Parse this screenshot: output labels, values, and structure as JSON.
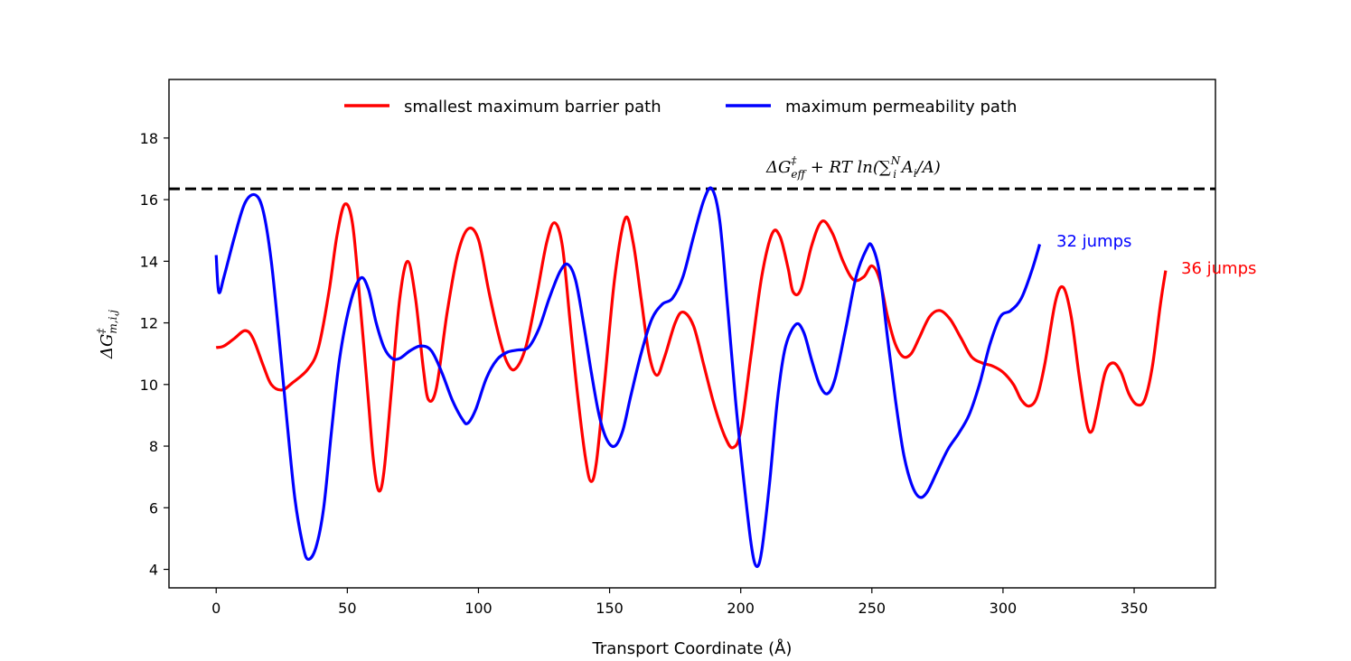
{
  "chart_data": {
    "type": "line",
    "title": "",
    "xlabel": "Transport Coordinate (Å)",
    "ylabel": "ΔG‡m,i,j",
    "xlim": [
      -18,
      381
    ],
    "ylim": [
      3.4,
      19.9
    ],
    "xticks": [
      0,
      50,
      100,
      150,
      200,
      250,
      300,
      350
    ],
    "yticks": [
      4,
      6,
      8,
      10,
      12,
      14,
      16,
      18
    ],
    "legend_position": "upper-center",
    "reference_line": {
      "y": 16.35,
      "style": "dashed",
      "label_parts": {
        "base": "ΔG",
        "sup": "‡",
        "sub": "eff",
        "rest": " + RT ln(∑",
        "sum_sub": "i",
        "sum_sup": "N",
        "tail": " A",
        "tail_sub": "i",
        "end": "/A)"
      }
    },
    "series": [
      {
        "name": "smallest maximum barrier path",
        "color": "#ff0000",
        "end_label": "36 jumps",
        "points": [
          [
            0,
            11.2
          ],
          [
            3,
            11.25
          ],
          [
            7,
            11.5
          ],
          [
            11,
            11.75
          ],
          [
            14,
            11.5
          ],
          [
            18,
            10.6
          ],
          [
            21,
            10.0
          ],
          [
            25,
            9.82
          ],
          [
            29,
            10.05
          ],
          [
            35,
            10.5
          ],
          [
            39,
            11.2
          ],
          [
            43,
            13.0
          ],
          [
            46,
            14.8
          ],
          [
            49,
            15.85
          ],
          [
            52,
            15.2
          ],
          [
            55,
            12.5
          ],
          [
            58,
            9.5
          ],
          [
            60,
            7.5
          ],
          [
            62,
            6.55
          ],
          [
            64,
            7.2
          ],
          [
            67,
            10.0
          ],
          [
            70,
            12.8
          ],
          [
            73,
            14.0
          ],
          [
            76,
            12.8
          ],
          [
            79,
            10.5
          ],
          [
            81,
            9.5
          ],
          [
            84,
            9.9
          ],
          [
            88,
            12.3
          ],
          [
            92,
            14.2
          ],
          [
            96,
            15.05
          ],
          [
            100,
            14.7
          ],
          [
            104,
            13.0
          ],
          [
            108,
            11.5
          ],
          [
            111,
            10.7
          ],
          [
            114,
            10.5
          ],
          [
            118,
            11.2
          ],
          [
            122,
            12.8
          ],
          [
            126,
            14.6
          ],
          [
            129,
            15.25
          ],
          [
            132,
            14.5
          ],
          [
            135,
            12.0
          ],
          [
            138,
            9.5
          ],
          [
            141,
            7.5
          ],
          [
            143,
            6.85
          ],
          [
            145,
            7.5
          ],
          [
            148,
            10.0
          ],
          [
            152,
            13.5
          ],
          [
            156,
            15.4
          ],
          [
            159,
            14.6
          ],
          [
            162,
            12.8
          ],
          [
            165,
            11.0
          ],
          [
            168,
            10.3
          ],
          [
            171,
            10.9
          ],
          [
            175,
            12.0
          ],
          [
            178,
            12.35
          ],
          [
            182,
            11.9
          ],
          [
            186,
            10.6
          ],
          [
            190,
            9.3
          ],
          [
            194,
            8.3
          ],
          [
            197,
            7.95
          ],
          [
            200,
            8.5
          ],
          [
            204,
            11.0
          ],
          [
            208,
            13.5
          ],
          [
            212,
            14.9
          ],
          [
            215,
            14.8
          ],
          [
            218,
            13.8
          ],
          [
            220,
            13.0
          ],
          [
            223,
            13.1
          ],
          [
            227,
            14.5
          ],
          [
            231,
            15.3
          ],
          [
            235,
            14.9
          ],
          [
            239,
            14.0
          ],
          [
            243,
            13.4
          ],
          [
            247,
            13.5
          ],
          [
            250,
            13.85
          ],
          [
            253,
            13.4
          ],
          [
            256,
            12.2
          ],
          [
            259,
            11.3
          ],
          [
            262,
            10.9
          ],
          [
            265,
            11.0
          ],
          [
            268,
            11.5
          ],
          [
            272,
            12.2
          ],
          [
            276,
            12.4
          ],
          [
            280,
            12.1
          ],
          [
            284,
            11.5
          ],
          [
            288,
            10.9
          ],
          [
            292,
            10.7
          ],
          [
            296,
            10.6
          ],
          [
            300,
            10.4
          ],
          [
            304,
            10.0
          ],
          [
            307,
            9.5
          ],
          [
            310,
            9.3
          ],
          [
            313,
            9.6
          ],
          [
            316,
            10.7
          ],
          [
            320,
            12.7
          ],
          [
            323,
            13.15
          ],
          [
            326,
            12.2
          ],
          [
            329,
            10.3
          ],
          [
            332,
            8.7
          ],
          [
            334,
            8.5
          ],
          [
            336,
            9.2
          ],
          [
            339,
            10.4
          ],
          [
            342,
            10.7
          ],
          [
            345,
            10.4
          ],
          [
            348,
            9.7
          ],
          [
            351,
            9.35
          ],
          [
            354,
            9.5
          ],
          [
            357,
            10.6
          ],
          [
            360,
            12.6
          ],
          [
            362,
            13.7
          ]
        ]
      },
      {
        "name": "maximum permeability path",
        "color": "#0000ff",
        "end_label": "32 jumps",
        "points": [
          [
            0,
            14.2
          ],
          [
            1,
            13.0
          ],
          [
            3,
            13.5
          ],
          [
            7,
            14.8
          ],
          [
            11,
            15.9
          ],
          [
            15,
            16.15
          ],
          [
            18,
            15.6
          ],
          [
            21,
            14.0
          ],
          [
            24,
            11.5
          ],
          [
            27,
            8.8
          ],
          [
            30,
            6.3
          ],
          [
            33,
            4.8
          ],
          [
            35,
            4.33
          ],
          [
            38,
            4.7
          ],
          [
            41,
            6.0
          ],
          [
            44,
            8.5
          ],
          [
            47,
            10.8
          ],
          [
            51,
            12.6
          ],
          [
            55,
            13.45
          ],
          [
            58,
            13.1
          ],
          [
            61,
            12.0
          ],
          [
            64,
            11.2
          ],
          [
            67,
            10.85
          ],
          [
            70,
            10.85
          ],
          [
            74,
            11.1
          ],
          [
            78,
            11.25
          ],
          [
            82,
            11.1
          ],
          [
            86,
            10.4
          ],
          [
            90,
            9.5
          ],
          [
            94,
            8.85
          ],
          [
            96,
            8.75
          ],
          [
            99,
            9.2
          ],
          [
            103,
            10.2
          ],
          [
            107,
            10.8
          ],
          [
            111,
            11.05
          ],
          [
            115,
            11.12
          ],
          [
            119,
            11.2
          ],
          [
            123,
            11.8
          ],
          [
            127,
            12.8
          ],
          [
            131,
            13.65
          ],
          [
            134,
            13.9
          ],
          [
            137,
            13.4
          ],
          [
            140,
            12.0
          ],
          [
            143,
            10.4
          ],
          [
            146,
            9.0
          ],
          [
            149,
            8.2
          ],
          [
            152,
            8.0
          ],
          [
            155,
            8.5
          ],
          [
            158,
            9.6
          ],
          [
            162,
            11.0
          ],
          [
            166,
            12.1
          ],
          [
            170,
            12.6
          ],
          [
            174,
            12.8
          ],
          [
            178,
            13.5
          ],
          [
            182,
            14.8
          ],
          [
            186,
            16.0
          ],
          [
            189,
            16.35
          ],
          [
            192,
            15.3
          ],
          [
            195,
            12.5
          ],
          [
            198,
            9.5
          ],
          [
            201,
            7.0
          ],
          [
            204,
            4.8
          ],
          [
            206,
            4.1
          ],
          [
            208,
            4.6
          ],
          [
            211,
            6.8
          ],
          [
            214,
            9.5
          ],
          [
            217,
            11.2
          ],
          [
            221,
            11.95
          ],
          [
            224,
            11.7
          ],
          [
            227,
            10.8
          ],
          [
            230,
            10.0
          ],
          [
            233,
            9.7
          ],
          [
            236,
            10.2
          ],
          [
            240,
            11.8
          ],
          [
            244,
            13.5
          ],
          [
            248,
            14.4
          ],
          [
            250,
            14.5
          ],
          [
            253,
            13.6
          ],
          [
            256,
            11.5
          ],
          [
            259,
            9.5
          ],
          [
            262,
            7.8
          ],
          [
            265,
            6.8
          ],
          [
            268,
            6.35
          ],
          [
            271,
            6.5
          ],
          [
            275,
            7.2
          ],
          [
            279,
            7.9
          ],
          [
            283,
            8.4
          ],
          [
            287,
            9.0
          ],
          [
            291,
            10.0
          ],
          [
            295,
            11.3
          ],
          [
            299,
            12.2
          ],
          [
            303,
            12.4
          ],
          [
            307,
            12.8
          ],
          [
            311,
            13.7
          ],
          [
            314,
            14.55
          ]
        ]
      }
    ]
  }
}
